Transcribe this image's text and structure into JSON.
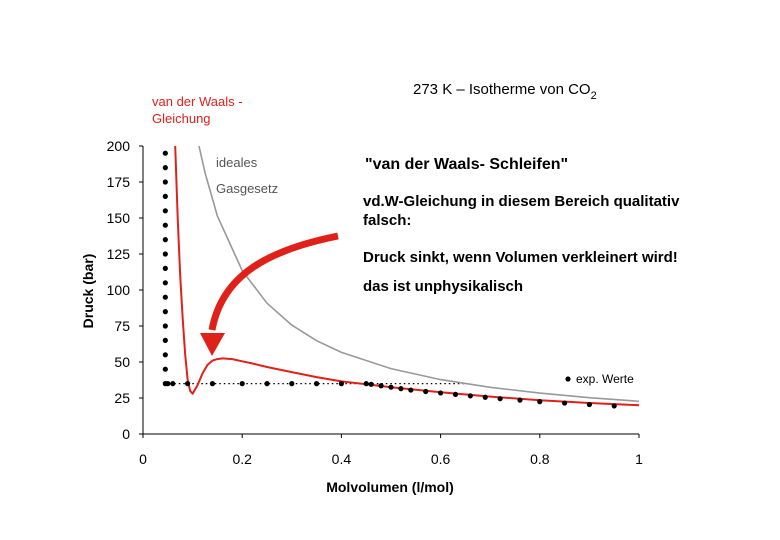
{
  "chart_data": {
    "type": "line",
    "title": "273 K – Isotherme von CO",
    "title_subscript": "2",
    "xlabel": "Molvolumen (l/mol)",
    "ylabel": "Druck (bar)",
    "xlim": [
      0,
      1
    ],
    "ylim": [
      0,
      200
    ],
    "x_ticks": [
      "0",
      "0.2",
      "0.4",
      "0.6",
      "0.8",
      "1"
    ],
    "x_tick_values": [
      0,
      0.2,
      0.4,
      0.6,
      0.8,
      1
    ],
    "y_ticks": [
      "0",
      "25",
      "50",
      "75",
      "100",
      "125",
      "150",
      "175",
      "200"
    ],
    "y_tick_values": [
      0,
      25,
      50,
      75,
      100,
      125,
      150,
      175,
      200
    ],
    "grid": false,
    "series": [
      {
        "name": "van der Waals - Gleichung",
        "color": "#e0211a",
        "x": [
          0.065,
          0.07,
          0.075,
          0.08,
          0.085,
          0.09,
          0.095,
          0.1,
          0.11,
          0.12,
          0.13,
          0.14,
          0.15,
          0.16,
          0.18,
          0.2,
          0.22,
          0.25,
          0.3,
          0.35,
          0.4,
          0.45,
          0.5,
          0.6,
          0.7,
          0.8,
          0.9,
          1.0
        ],
        "y": [
          200,
          150,
          110,
          80,
          55,
          38,
          30,
          28,
          34,
          42,
          48,
          51,
          52,
          52.5,
          52,
          50.5,
          49,
          46.5,
          43,
          39.5,
          36.5,
          34.5,
          32.5,
          29,
          26,
          23.5,
          21.5,
          20
        ]
      },
      {
        "name": "ideales Gasgesetz",
        "color": "#999999",
        "x": [
          0.113,
          0.125,
          0.15,
          0.2,
          0.25,
          0.3,
          0.35,
          0.4,
          0.5,
          0.6,
          0.7,
          0.8,
          0.9,
          1.0
        ],
        "y": [
          200,
          181.5,
          151.3,
          113.5,
          90.8,
          75.6,
          64.8,
          56.7,
          45.4,
          37.8,
          32.4,
          28.4,
          25.2,
          22.7
        ]
      },
      {
        "name": "exp. Werte",
        "color": "#000000",
        "marker": "dot",
        "x": [
          0.045,
          0.045,
          0.045,
          0.045,
          0.045,
          0.045,
          0.045,
          0.045,
          0.045,
          0.045,
          0.045,
          0.045,
          0.045,
          0.045,
          0.045,
          0.045,
          0.045,
          0.05,
          0.06,
          0.09,
          0.14,
          0.2,
          0.25,
          0.3,
          0.35,
          0.4,
          0.45,
          0.46,
          0.48,
          0.5,
          0.52,
          0.54,
          0.57,
          0.6,
          0.63,
          0.66,
          0.69,
          0.72,
          0.76,
          0.8,
          0.85,
          0.9,
          0.95
        ],
        "y": [
          195,
          185,
          175,
          165,
          155,
          145,
          135,
          125,
          115,
          105,
          95,
          85,
          75,
          65,
          55,
          45,
          35,
          35,
          35,
          35,
          35,
          35,
          35,
          35,
          35,
          35,
          35,
          34.5,
          33.5,
          32.5,
          31.5,
          30.5,
          29.5,
          28.5,
          27.5,
          26.5,
          25.5,
          24.5,
          23.5,
          22.5,
          21.5,
          20.5,
          19.5
        ]
      }
    ],
    "dotted_line": {
      "x": [
        0.045,
        0.65
      ],
      "y": 35
    },
    "legend": {
      "placement": "bottom-right",
      "label": "exp. Werte"
    },
    "series_labels": {
      "vdw_line1": "van der Waals -",
      "vdw_line2": "Gleichung",
      "ideal_line1": "ideales",
      "ideal_line2": "Gasgesetz"
    },
    "annotations": [
      "\"van der Waals- Schleifen\"",
      "vd.W-Gleichung in diesem Bereich qualitativ",
      "falsch:",
      "Druck sinkt, wenn Volumen verkleinert wird!",
      "das ist unphysikalisch"
    ],
    "colors": {
      "vdw": "#e0211a",
      "ideal": "#999999",
      "exp": "#000000",
      "arrow": "#e0211a"
    }
  }
}
